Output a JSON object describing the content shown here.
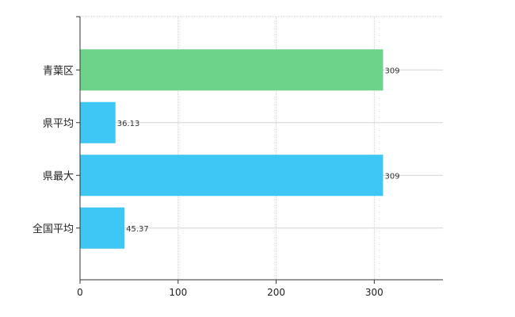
{
  "chart_data": {
    "type": "bar",
    "orientation": "horizontal",
    "categories": [
      "青葉区",
      "県平均",
      "県最大",
      "全国平均"
    ],
    "values": [
      309,
      36.13,
      309,
      45.37
    ],
    "value_labels": [
      "309",
      "36.13",
      "309",
      "45.37"
    ],
    "bar_colors": [
      "#6dd38a",
      "#3ec6f4",
      "#3ec6f4",
      "#3ec6f4"
    ],
    "xlim": [
      0,
      370
    ],
    "x_ticks": [
      0,
      100,
      200,
      300
    ],
    "x_tick_labels": [
      "0",
      "100",
      "200",
      "300"
    ],
    "grid": true,
    "title": "",
    "xlabel": "",
    "ylabel": ""
  }
}
